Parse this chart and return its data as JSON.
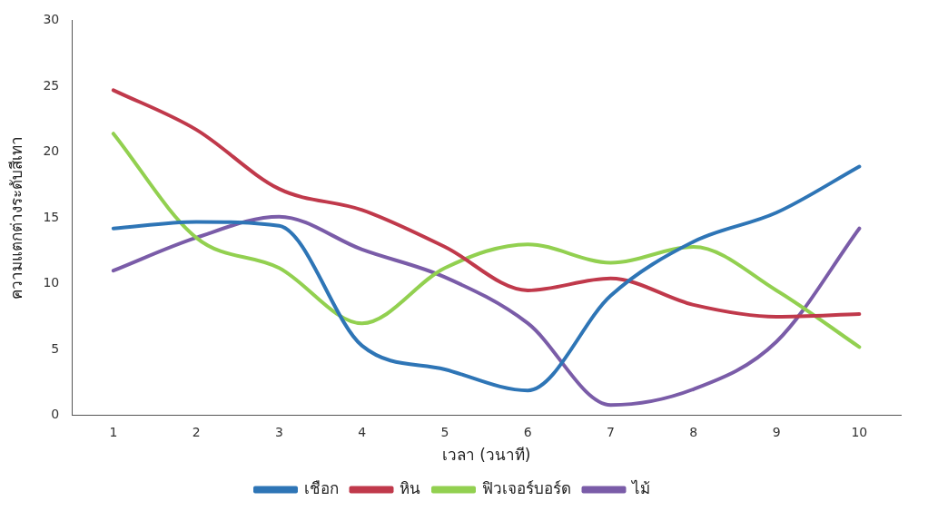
{
  "chart_data": {
    "type": "line",
    "xlabel": "เวลา (วนาที)",
    "ylabel": "ความแตกต่างระดับสีเทา",
    "categories": [
      "1",
      "2",
      "3",
      "4",
      "5",
      "6",
      "7",
      "8",
      "9",
      "10"
    ],
    "series": [
      {
        "name": "เชือก",
        "color": "#2e75b6",
        "values": [
          14.2,
          14.7,
          14.4,
          5.3,
          3.5,
          1.9,
          9.1,
          13.2,
          15.4,
          18.9
        ]
      },
      {
        "name": "หิน",
        "color": "#c0394b",
        "values": [
          24.7,
          21.7,
          17.2,
          15.6,
          12.8,
          9.5,
          10.4,
          8.4,
          7.5,
          7.7
        ]
      },
      {
        "name": "ฟิวเจอร์บอร์ด",
        "color": "#92d050",
        "values": [
          21.4,
          13.5,
          11.2,
          7.0,
          11.2,
          13.0,
          11.6,
          12.8,
          9.5,
          5.2
        ]
      },
      {
        "name": "ไม้",
        "color": "#7a5ca8",
        "values": [
          11.0,
          13.5,
          15.1,
          12.6,
          10.5,
          7.0,
          0.8,
          2.0,
          5.6,
          14.2
        ]
      }
    ],
    "ylim": [
      0,
      30
    ],
    "yticks": [
      0,
      5,
      10,
      15,
      20,
      25,
      30
    ],
    "grid": false,
    "legend": "bottom",
    "marker": "none",
    "line_style": "solid"
  }
}
